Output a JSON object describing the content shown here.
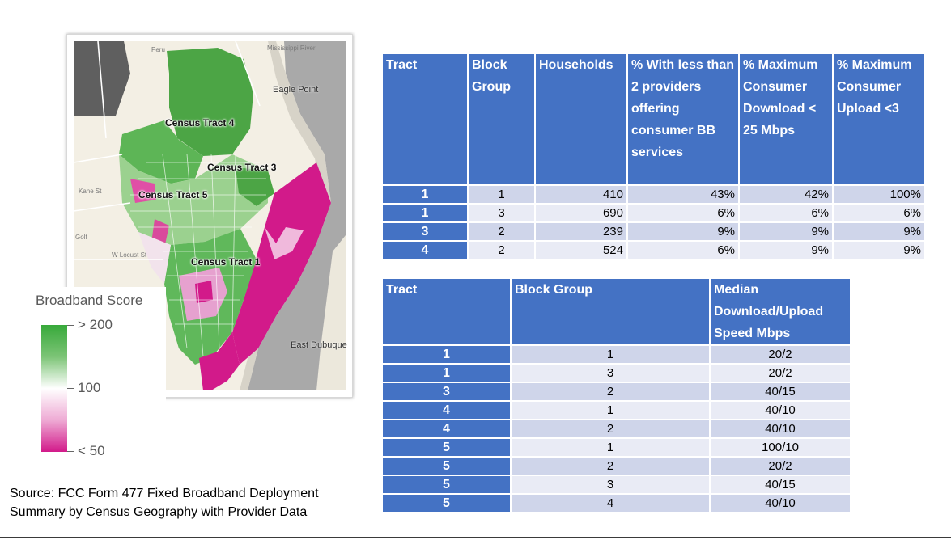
{
  "map": {
    "tract_labels": [
      "Census Tract 4",
      "Census Tract 3",
      "Census Tract 5",
      "Census Tract 1"
    ],
    "places": [
      "Eagle Point",
      "East Dubuque"
    ],
    "minor_labels": [
      "Mississippi River",
      "Kane St",
      "W Locust St",
      "Golf",
      "Peru"
    ]
  },
  "legend": {
    "title": "Broadband Score",
    "high": "> 200",
    "mid": "100",
    "low": "< 50",
    "colors": {
      "high": "#37a93a",
      "mid": "#ffffff",
      "low": "#d21a8a"
    }
  },
  "source": {
    "line1": "Source: FCC Form 477 Fixed Broadband Deployment",
    "line2": "Summary by Census Geography with Provider Data"
  },
  "table1": {
    "headers": [
      "Tract",
      "Block Group",
      "Households",
      "% With less than 2 providers offering consumer BB services",
      "% Maximum Consumer Download < 25 Mbps",
      "% Maximum Consumer Upload <3"
    ],
    "rows": [
      [
        "1",
        "1",
        "410",
        "43%",
        "42%",
        "100%"
      ],
      [
        "1",
        "3",
        "690",
        "6%",
        "6%",
        "6%"
      ],
      [
        "3",
        "2",
        "239",
        "9%",
        "9%",
        "9%"
      ],
      [
        "4",
        "2",
        "524",
        "6%",
        "9%",
        "9%"
      ]
    ]
  },
  "table2": {
    "headers": [
      "Tract",
      "Block Group",
      "Median Download/Upload Speed Mbps"
    ],
    "rows": [
      [
        "1",
        "1",
        "20/2"
      ],
      [
        "1",
        "3",
        "20/2"
      ],
      [
        "3",
        "2",
        "40/15"
      ],
      [
        "4",
        "1",
        "40/10"
      ],
      [
        "4",
        "2",
        "40/10"
      ],
      [
        "5",
        "1",
        "100/10"
      ],
      [
        "5",
        "2",
        "20/2"
      ],
      [
        "5",
        "3",
        "40/15"
      ],
      [
        "5",
        "4",
        "40/10"
      ]
    ]
  },
  "colors": {
    "header_blue": "#4472c4",
    "row_dark": "#cfd5ea",
    "row_light": "#e9ebf5"
  }
}
